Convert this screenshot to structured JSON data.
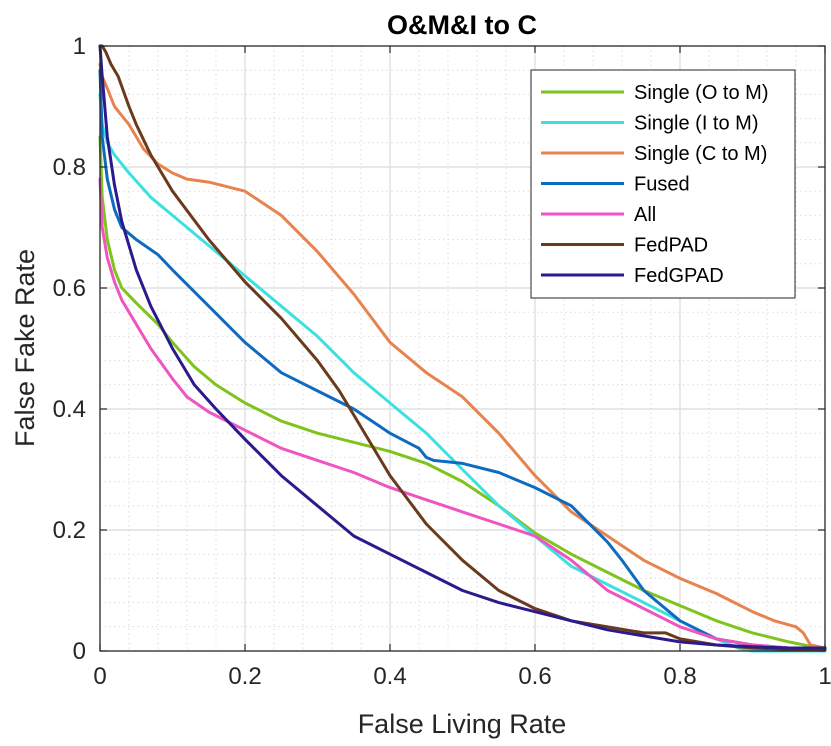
{
  "chart_data": {
    "type": "line",
    "title": "O&M&I to C",
    "xlabel": "False Living Rate",
    "ylabel": "False Fake Rate",
    "xlim": [
      0,
      1
    ],
    "ylim": [
      0,
      1
    ],
    "xticks": [
      0,
      0.2,
      0.4,
      0.6,
      0.8,
      1
    ],
    "yticks": [
      0,
      0.2,
      0.4,
      0.6,
      0.8,
      1
    ],
    "xtick_labels": [
      "0",
      "0.2",
      "0.4",
      "0.6",
      "0.8",
      "1"
    ],
    "ytick_labels": [
      "0",
      "0.2",
      "0.4",
      "0.6",
      "0.8",
      "1"
    ],
    "grid": "major-and-minor",
    "legend_position": "top-right",
    "series": [
      {
        "name": "Single (O to M)",
        "color": "#7fc31c",
        "x": [
          0,
          0.003,
          0.01,
          0.02,
          0.03,
          0.05,
          0.08,
          0.1,
          0.13,
          0.16,
          0.2,
          0.25,
          0.3,
          0.35,
          0.4,
          0.45,
          0.5,
          0.55,
          0.6,
          0.65,
          0.7,
          0.75,
          0.8,
          0.85,
          0.9,
          0.95,
          0.98,
          1.0
        ],
        "y": [
          0.85,
          0.75,
          0.68,
          0.63,
          0.6,
          0.575,
          0.54,
          0.51,
          0.47,
          0.44,
          0.41,
          0.38,
          0.36,
          0.345,
          0.33,
          0.31,
          0.28,
          0.24,
          0.195,
          0.16,
          0.13,
          0.1,
          0.075,
          0.05,
          0.03,
          0.015,
          0.008,
          0.005
        ]
      },
      {
        "name": "Single (I to M)",
        "color": "#3de0e0",
        "x": [
          0,
          0.003,
          0.01,
          0.02,
          0.04,
          0.07,
          0.1,
          0.15,
          0.2,
          0.25,
          0.3,
          0.35,
          0.4,
          0.45,
          0.5,
          0.55,
          0.6,
          0.65,
          0.7,
          0.75,
          0.8,
          0.85,
          0.88,
          0.9,
          0.95,
          1.0
        ],
        "y": [
          0.92,
          0.87,
          0.84,
          0.82,
          0.79,
          0.75,
          0.72,
          0.67,
          0.62,
          0.57,
          0.52,
          0.46,
          0.41,
          0.36,
          0.3,
          0.24,
          0.19,
          0.14,
          0.11,
          0.08,
          0.05,
          0.02,
          0.005,
          0.0,
          0.0,
          0.0
        ]
      },
      {
        "name": "Single (C to M)",
        "color": "#e6834e",
        "x": [
          0,
          0.003,
          0.01,
          0.02,
          0.04,
          0.06,
          0.08,
          0.1,
          0.12,
          0.15,
          0.2,
          0.25,
          0.3,
          0.35,
          0.4,
          0.45,
          0.5,
          0.55,
          0.6,
          0.65,
          0.7,
          0.75,
          0.8,
          0.85,
          0.9,
          0.93,
          0.96,
          0.97,
          0.98,
          1.0
        ],
        "y": [
          0.97,
          0.95,
          0.93,
          0.9,
          0.87,
          0.83,
          0.805,
          0.79,
          0.78,
          0.775,
          0.76,
          0.72,
          0.66,
          0.59,
          0.51,
          0.46,
          0.42,
          0.36,
          0.29,
          0.23,
          0.19,
          0.15,
          0.12,
          0.095,
          0.065,
          0.05,
          0.04,
          0.03,
          0.01,
          0.005
        ]
      },
      {
        "name": "Fused",
        "color": "#0f6bbf",
        "x": [
          0,
          0.003,
          0.01,
          0.02,
          0.03,
          0.05,
          0.08,
          0.1,
          0.15,
          0.2,
          0.25,
          0.3,
          0.35,
          0.4,
          0.44,
          0.45,
          0.46,
          0.5,
          0.55,
          0.6,
          0.65,
          0.7,
          0.72,
          0.75,
          0.8,
          0.85,
          0.9,
          0.95,
          1.0
        ],
        "y": [
          0.96,
          0.85,
          0.78,
          0.73,
          0.7,
          0.68,
          0.655,
          0.63,
          0.57,
          0.51,
          0.46,
          0.43,
          0.4,
          0.36,
          0.335,
          0.32,
          0.315,
          0.31,
          0.295,
          0.27,
          0.24,
          0.18,
          0.15,
          0.1,
          0.05,
          0.02,
          0.01,
          0.005,
          0.005
        ]
      },
      {
        "name": "All",
        "color": "#ef55c0",
        "x": [
          0,
          0.003,
          0.01,
          0.02,
          0.03,
          0.05,
          0.07,
          0.1,
          0.12,
          0.15,
          0.2,
          0.25,
          0.3,
          0.35,
          0.4,
          0.45,
          0.5,
          0.55,
          0.6,
          0.65,
          0.7,
          0.75,
          0.8,
          0.85,
          0.9,
          0.95,
          1.0
        ],
        "y": [
          0.78,
          0.7,
          0.65,
          0.61,
          0.58,
          0.54,
          0.5,
          0.45,
          0.42,
          0.395,
          0.365,
          0.335,
          0.315,
          0.295,
          0.27,
          0.25,
          0.23,
          0.21,
          0.19,
          0.15,
          0.1,
          0.07,
          0.04,
          0.02,
          0.01,
          0.005,
          0.005
        ]
      },
      {
        "name": "FedPAD",
        "color": "#6b3a1c",
        "x": [
          0,
          0.003,
          0.008,
          0.015,
          0.025,
          0.04,
          0.05,
          0.07,
          0.1,
          0.15,
          0.2,
          0.25,
          0.3,
          0.33,
          0.35,
          0.38,
          0.4,
          0.45,
          0.5,
          0.55,
          0.6,
          0.65,
          0.7,
          0.75,
          0.78,
          0.8,
          0.85,
          0.9,
          0.95,
          1.0
        ],
        "y": [
          1.0,
          1.0,
          0.99,
          0.97,
          0.95,
          0.9,
          0.87,
          0.82,
          0.76,
          0.68,
          0.61,
          0.55,
          0.48,
          0.43,
          0.39,
          0.33,
          0.29,
          0.21,
          0.15,
          0.1,
          0.07,
          0.05,
          0.04,
          0.03,
          0.03,
          0.02,
          0.01,
          0.005,
          0.003,
          0.002
        ]
      },
      {
        "name": "FedGPAD",
        "color": "#2a1a8c",
        "x": [
          0,
          0.003,
          0.01,
          0.02,
          0.03,
          0.05,
          0.07,
          0.1,
          0.13,
          0.16,
          0.2,
          0.25,
          0.3,
          0.35,
          0.4,
          0.45,
          0.5,
          0.55,
          0.6,
          0.65,
          0.7,
          0.75,
          0.8,
          0.85,
          0.9,
          0.95,
          1.0
        ],
        "y": [
          1.0,
          0.95,
          0.85,
          0.77,
          0.71,
          0.63,
          0.57,
          0.5,
          0.44,
          0.4,
          0.35,
          0.29,
          0.24,
          0.19,
          0.16,
          0.13,
          0.1,
          0.08,
          0.065,
          0.05,
          0.035,
          0.025,
          0.015,
          0.01,
          0.007,
          0.005,
          0.005
        ]
      }
    ]
  }
}
